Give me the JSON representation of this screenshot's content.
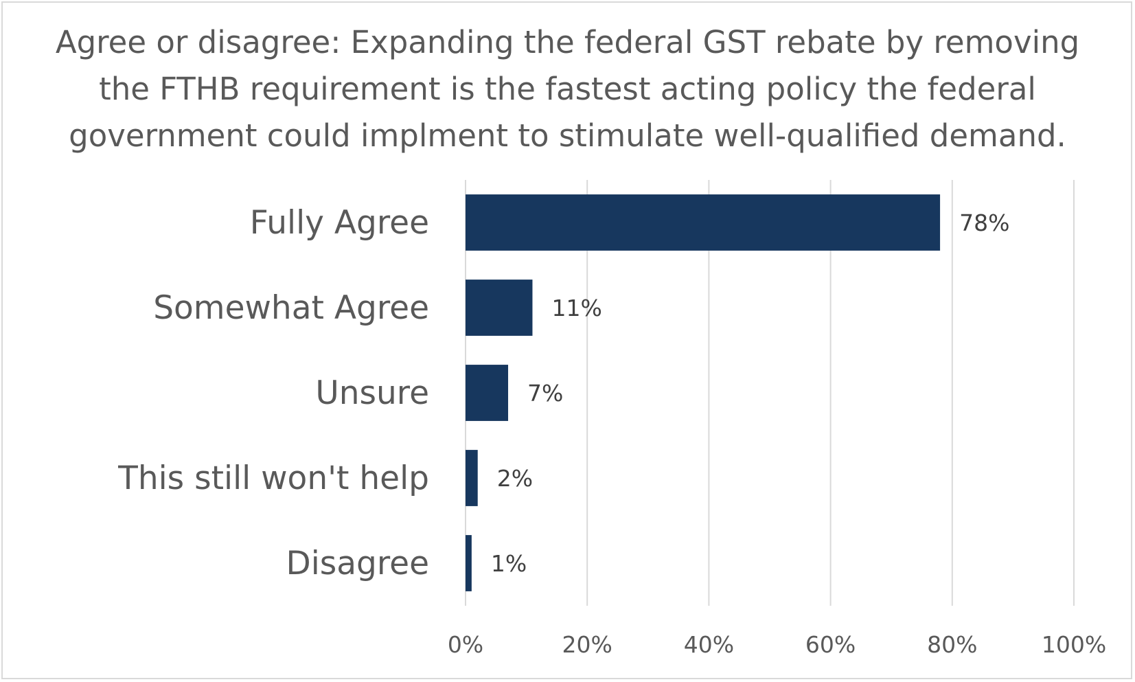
{
  "chart_data": {
    "type": "bar",
    "orientation": "horizontal",
    "title": "Agree or disagree: Expanding the federal GST rebate by removing the FTHB requirement is the fastest acting policy the federal government could implment to stimulate well-qualified demand.",
    "categories": [
      "Fully Agree",
      "Somewhat Agree",
      "Unsure",
      "This still won't help",
      "Disagree"
    ],
    "values": [
      78,
      11,
      7,
      2,
      1
    ],
    "data_labels": [
      "78%",
      "11%",
      "7%",
      "2%",
      "1%"
    ],
    "xlim": [
      0,
      100
    ],
    "ticks": [
      0,
      20,
      40,
      60,
      80,
      100
    ],
    "tick_labels": [
      "0%",
      "20%",
      "40%",
      "60%",
      "80%",
      "100%"
    ],
    "grid": true,
    "legend": "none",
    "bar_color": "#17375e",
    "grid_color": "#d9d9d9"
  }
}
